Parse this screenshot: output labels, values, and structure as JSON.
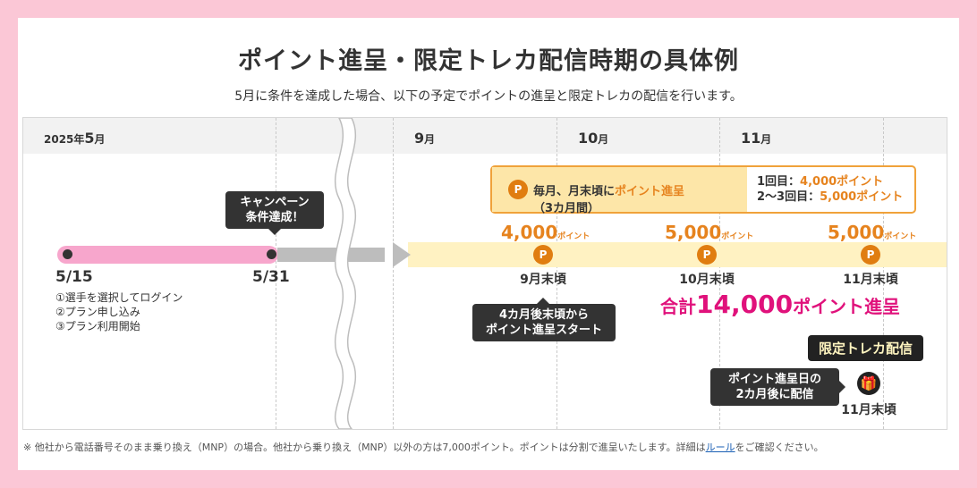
{
  "title": "ポイント進呈・限定トレカ配信時期の具体例",
  "subtitle": "5月に条件を達成した場合、以下の予定でポイントの進呈と限定トレカの配信を行います。",
  "months": [
    {
      "year": "2025年",
      "num": "5",
      "unit": "月"
    },
    {
      "num": "9",
      "unit": "月"
    },
    {
      "num": "10",
      "unit": "月"
    },
    {
      "num": "11",
      "unit": "月"
    }
  ],
  "dates": {
    "start": "5/15",
    "end": "5/31"
  },
  "steps": [
    "①選手を選択してログイン",
    "②プラン申し込み",
    "③プラン利用開始"
  ],
  "bubbles": {
    "achieve": [
      "キャンペーン",
      "条件達成！"
    ],
    "start": [
      "4カ月後末頃から",
      "ポイント進呈スタート"
    ],
    "card": [
      "ポイント進呈日の",
      "2カ月後に配信"
    ]
  },
  "info": {
    "icon": "P",
    "left_pre": "毎月、月末頃に",
    "left_em": "ポイント進呈",
    "left_post": "（3カ月間）",
    "r1_label": "1回目：",
    "r1_val": "4,000ポイント",
    "r2_label": "2〜3回目：",
    "r2_val": "5,000ポイント"
  },
  "points": [
    {
      "amount": "4,000",
      "unit": "ポイント",
      "label": "9月末頃"
    },
    {
      "amount": "5,000",
      "unit": "ポイント",
      "label": "10月末頃"
    },
    {
      "amount": "5,000",
      "unit": "ポイント",
      "label": "11月末頃"
    }
  ],
  "total": {
    "pre": "合計",
    "amount": "14,000",
    "post": "ポイント進呈"
  },
  "card_tag": "限定トレカ配信",
  "card_label": "11月末頃",
  "note": {
    "text": "※ 他社から電話番号そのまま乗り換え（MNP）の場合。他社から乗り換え（MNP）以外の方は7,000ポイント。ポイントは分割で進呈いたします。詳細は",
    "link": "ルール",
    "tail": "をご確認ください。"
  },
  "colors": {
    "pink": "#f7a6cc",
    "orange": "#e6831e",
    "magenta": "#e0117b",
    "yellow": "#fff2c2"
  }
}
